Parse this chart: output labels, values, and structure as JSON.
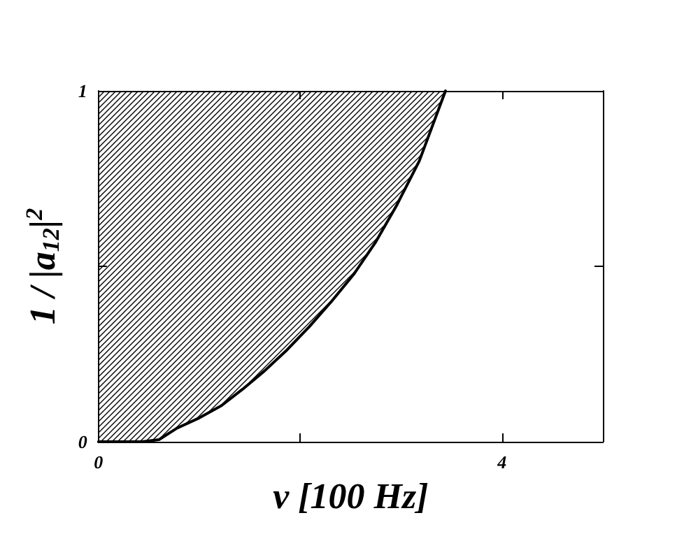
{
  "chart_data": {
    "type": "line",
    "xlabel": "ν [100 Hz]",
    "ylabel": "1 / |a$_{12}$|$^{2}$",
    "x": [
      0,
      0.43,
      0.6,
      0.78,
      1.0,
      1.22,
      1.43,
      1.65,
      1.87,
      2.09,
      2.31,
      2.53,
      2.75,
      2.96,
      3.18,
      3.44
    ],
    "series": [
      {
        "color": "#000000",
        "values": [
          0,
          0,
          0.006,
          0.039,
          0.068,
          0.103,
          0.15,
          0.203,
          0.262,
          0.328,
          0.4,
          0.477,
          0.57,
          0.676,
          0.8,
          1.0
        ],
        "lower": [
          0,
          0,
          0.006,
          0.039,
          0.068,
          0.103,
          0.15,
          0.203,
          0.262,
          0.328,
          0.4,
          0.477,
          0.57,
          0.676,
          0.8,
          1.0
        ],
        "upper": [
          1,
          1,
          1,
          1,
          1,
          1,
          1,
          1,
          1,
          1,
          1,
          1,
          1,
          1,
          1,
          1
        ]
      }
    ],
    "xlim": [
      0,
      5
    ],
    "ylim": [
      0,
      1
    ],
    "xticks": [
      0,
      {
        "value": 2,
        "label": null
      },
      4
    ],
    "yticks": [
      0,
      {
        "value": 0.5,
        "label": null
      },
      1
    ],
    "marker": "none",
    "line_style": "solid"
  }
}
